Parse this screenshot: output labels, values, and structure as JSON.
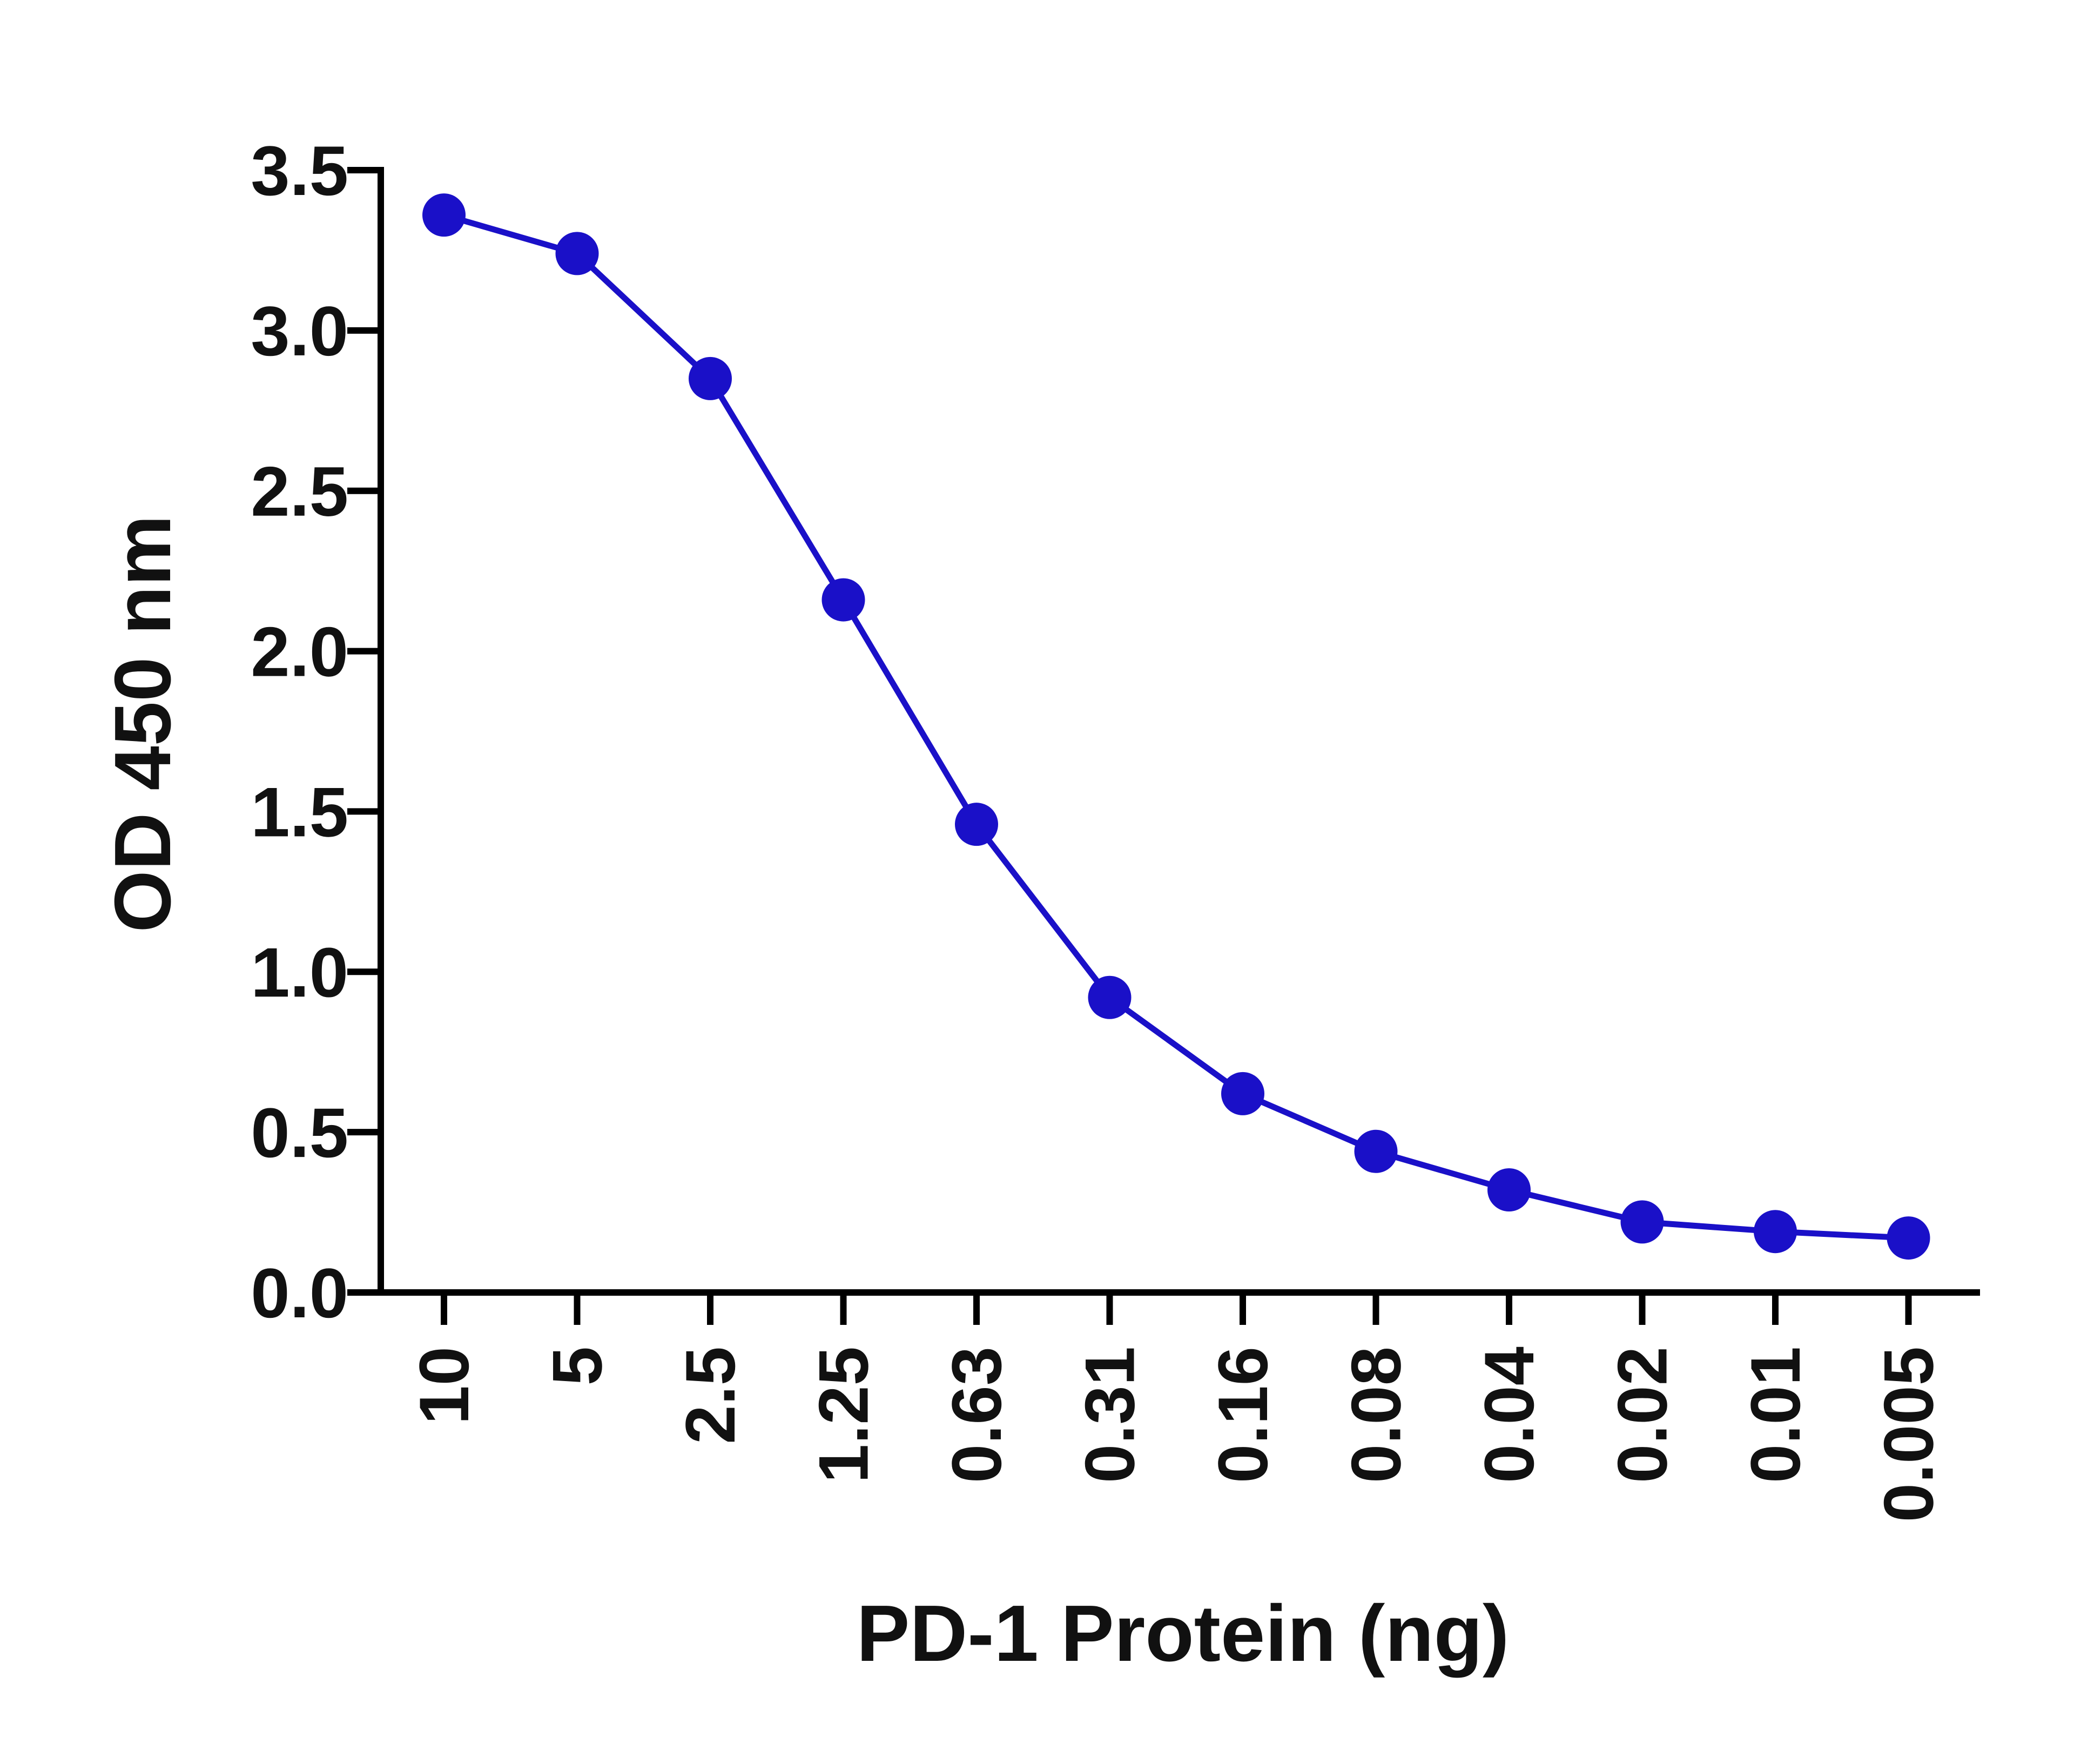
{
  "chart_data": {
    "type": "line",
    "xlabel": "PD-1 Protein (ng)",
    "ylabel": "OD 450 nm",
    "categories": [
      "10",
      "5",
      "2.5",
      "1.25",
      "0.63",
      "0.31",
      "0.16",
      "0.08",
      "0.04",
      "0.02",
      "0.01",
      "0.005"
    ],
    "series": [
      {
        "values": [
          3.36,
          3.24,
          2.85,
          2.16,
          1.46,
          0.92,
          0.62,
          0.44,
          0.32,
          0.22,
          0.19,
          0.17
        ],
        "color": "#1a10c8"
      }
    ],
    "ylim": [
      0,
      3.5
    ],
    "yticks": [
      "0.0",
      "0.5",
      "1.0",
      "1.5",
      "2.0",
      "2.5",
      "3.0",
      "3.5"
    ],
    "grid": false,
    "legend": "none"
  }
}
